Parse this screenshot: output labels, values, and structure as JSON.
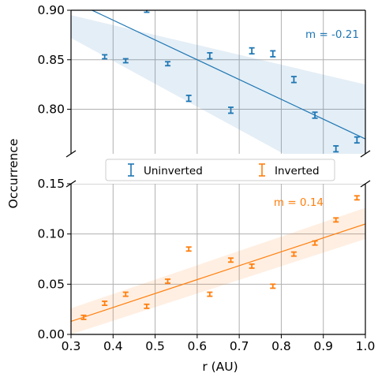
{
  "colors": {
    "uninverted": "#1f77b4",
    "inverted": "#ff7f0e",
    "grid": "#b0b0b0",
    "uninverted_band": "#1f77b4",
    "inverted_band": "#ff7f0e"
  },
  "chart_data": {
    "type": "scatter",
    "layout": "broken y-axis, two stacked panels sharing x",
    "xlabel": "r (AU)",
    "ylabel": "Occurrence",
    "xlim": [
      0.3,
      1.0
    ],
    "x_ticks": [
      "0.3",
      "0.4",
      "0.5",
      "0.6",
      "0.7",
      "0.8",
      "0.9",
      "1.0"
    ],
    "grid": true,
    "legend": {
      "placement": "center, between panels",
      "entries": [
        "Uninverted",
        "Inverted"
      ]
    },
    "panels": [
      {
        "name": "top",
        "ylim": [
          0.755,
          0.9
        ],
        "y_ticks": [
          "0.90",
          "0.85",
          "0.80"
        ],
        "series": [
          {
            "name": "Uninverted",
            "color_key": "uninverted",
            "x": [
              0.38,
              0.43,
              0.48,
              0.53,
              0.58,
              0.63,
              0.68,
              0.73,
              0.78,
              0.83,
              0.88,
              0.93,
              0.98
            ],
            "y": [
              0.853,
              0.849,
              0.9,
              0.846,
              0.811,
              0.854,
              0.799,
              0.859,
              0.856,
              0.83,
              0.794,
              0.76,
              0.769
            ],
            "yerr": [
              0.002,
              0.002,
              0.002,
              0.002,
              0.003,
              0.003,
              0.003,
              0.003,
              0.003,
              0.003,
              0.003,
              0.003,
              0.003
            ],
            "fit_line": {
              "x": [
                0.3,
                1.0
              ],
              "y": [
                0.91,
                0.77
              ]
            },
            "band": {
              "upper": [
                0.895,
                0.825
              ],
              "lower": [
                0.872,
                0.71
              ]
            },
            "annotation": "m = -0.21"
          }
        ]
      },
      {
        "name": "bottom",
        "ylim": [
          0.0,
          0.15
        ],
        "y_ticks": [
          "0.15",
          "0.10",
          "0.05",
          "0.00"
        ],
        "series": [
          {
            "name": "Inverted",
            "color_key": "inverted",
            "x": [
              0.33,
              0.38,
              0.43,
              0.48,
              0.53,
              0.58,
              0.63,
              0.68,
              0.73,
              0.78,
              0.83,
              0.88,
              0.93,
              0.98
            ],
            "y": [
              0.017,
              0.031,
              0.04,
              0.028,
              0.053,
              0.085,
              0.04,
              0.074,
              0.068,
              0.048,
              0.08,
              0.091,
              0.114,
              0.136
            ],
            "yerr": [
              0.002,
              0.002,
              0.002,
              0.002,
              0.002,
              0.002,
              0.002,
              0.002,
              0.002,
              0.002,
              0.002,
              0.002,
              0.002,
              0.002
            ],
            "fit_line": {
              "x": [
                0.3,
                1.0
              ],
              "y": [
                0.013,
                0.11
              ]
            },
            "band": {
              "upper": [
                0.026,
                0.126
              ],
              "lower": [
                0.0,
                0.095
              ]
            },
            "annotation": "m = 0.14"
          }
        ]
      }
    ]
  }
}
